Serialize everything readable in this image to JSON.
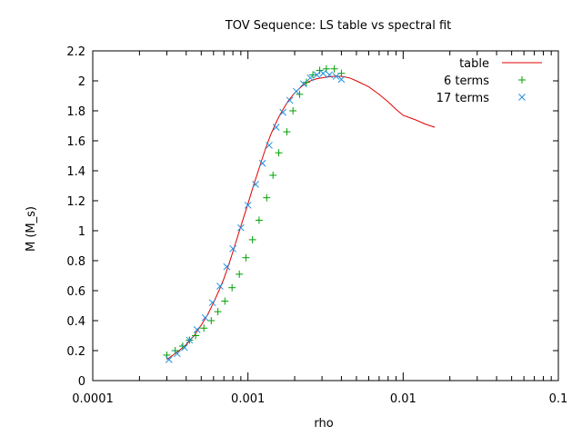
{
  "chart_data": {
    "type": "scatter",
    "title": "TOV Sequence: LS table vs spectral fit",
    "xlabel": "rho",
    "ylabel": "M (M_s)",
    "xscale": "log",
    "xlim": [
      0.0001,
      0.1
    ],
    "ylim": [
      0,
      2.2
    ],
    "xticks": [
      {
        "value": 0.0001,
        "label": "0.0001"
      },
      {
        "value": 0.001,
        "label": "0.001"
      },
      {
        "value": 0.01,
        "label": "0.01"
      },
      {
        "value": 0.1,
        "label": "0.1"
      }
    ],
    "yticks": [
      {
        "value": 0,
        "label": "0"
      },
      {
        "value": 0.2,
        "label": "0.2"
      },
      {
        "value": 0.4,
        "label": "0.4"
      },
      {
        "value": 0.6,
        "label": "0.6"
      },
      {
        "value": 0.8,
        "label": "0.8"
      },
      {
        "value": 1,
        "label": "1"
      },
      {
        "value": 1.2,
        "label": "1.2"
      },
      {
        "value": 1.4,
        "label": "1.4"
      },
      {
        "value": 1.6,
        "label": "1.6"
      },
      {
        "value": 1.8,
        "label": "1.8"
      },
      {
        "value": 2,
        "label": "2"
      },
      {
        "value": 2.2,
        "label": "2.2"
      }
    ],
    "grid": false,
    "legend_position": "top-right",
    "series": [
      {
        "name": "table",
        "style": "line",
        "color": "#e00000",
        "x": [
          0.0003,
          0.00035,
          0.0004,
          0.00045,
          0.0005,
          0.00055,
          0.0006,
          0.00065,
          0.0007,
          0.00075,
          0.0008,
          0.0009,
          0.001,
          0.0011,
          0.0012,
          0.0013,
          0.0014,
          0.0015,
          0.0016,
          0.0018,
          0.002,
          0.0022,
          0.0024,
          0.0026,
          0.0028,
          0.003,
          0.0032,
          0.0034,
          0.0036,
          0.0038,
          0.004,
          0.0045,
          0.005,
          0.006,
          0.007,
          0.008,
          0.009,
          0.01,
          0.012,
          0.014,
          0.016
        ],
        "y": [
          0.14,
          0.19,
          0.24,
          0.3,
          0.37,
          0.44,
          0.52,
          0.6,
          0.68,
          0.77,
          0.86,
          1.03,
          1.18,
          1.32,
          1.44,
          1.55,
          1.64,
          1.71,
          1.77,
          1.86,
          1.92,
          1.96,
          1.99,
          2.005,
          2.015,
          2.02,
          2.025,
          2.028,
          2.03,
          2.03,
          2.03,
          2.02,
          2.0,
          1.96,
          1.91,
          1.86,
          1.81,
          1.77,
          1.74,
          1.71,
          1.69
        ]
      },
      {
        "name": "6 terms",
        "style": "plus",
        "color": "#00a000",
        "x": [
          0.0003,
          0.00034,
          0.00038,
          0.00042,
          0.00046,
          0.00052,
          0.00058,
          0.00064,
          0.00071,
          0.00079,
          0.00088,
          0.00097,
          0.00107,
          0.00118,
          0.00132,
          0.00145,
          0.00158,
          0.00178,
          0.00195,
          0.00215,
          0.00238,
          0.00262,
          0.0029,
          0.0032,
          0.0036,
          0.004
        ],
        "y": [
          0.17,
          0.2,
          0.23,
          0.27,
          0.3,
          0.35,
          0.4,
          0.46,
          0.53,
          0.62,
          0.71,
          0.82,
          0.94,
          1.07,
          1.22,
          1.37,
          1.52,
          1.66,
          1.8,
          1.91,
          1.99,
          2.04,
          2.07,
          2.08,
          2.08,
          2.05
        ]
      },
      {
        "name": "17 terms",
        "style": "cross",
        "color": "#1e90e0",
        "x": [
          0.00031,
          0.00035,
          0.00039,
          0.00042,
          0.00047,
          0.00053,
          0.00059,
          0.00066,
          0.00073,
          0.0008,
          0.0009,
          0.001,
          0.00112,
          0.00124,
          0.00137,
          0.00152,
          0.00168,
          0.00186,
          0.00205,
          0.00228,
          0.00252,
          0.00278,
          0.00305,
          0.00335,
          0.0037,
          0.004
        ],
        "y": [
          0.14,
          0.18,
          0.22,
          0.27,
          0.34,
          0.42,
          0.52,
          0.63,
          0.76,
          0.88,
          1.02,
          1.17,
          1.31,
          1.45,
          1.57,
          1.69,
          1.79,
          1.87,
          1.93,
          1.98,
          2.02,
          2.04,
          2.05,
          2.04,
          2.03,
          2.01
        ]
      }
    ]
  }
}
